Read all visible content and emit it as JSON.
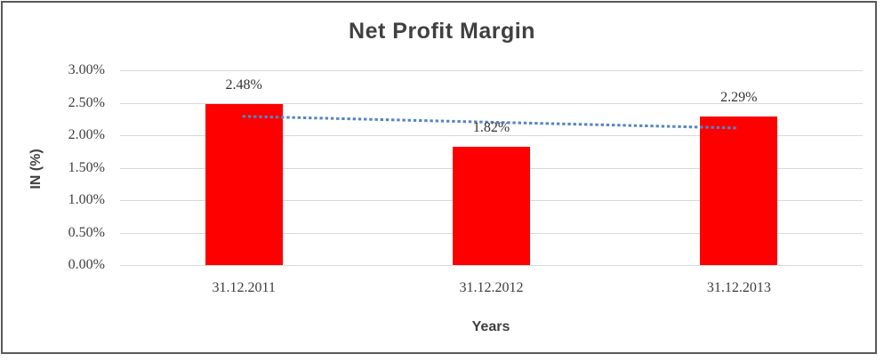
{
  "chart_data": {
    "type": "bar",
    "title": "Net Profit Margin",
    "xlabel": "Years",
    "ylabel": "IN (%)",
    "categories": [
      "31.12.2011",
      "31.12.2012",
      "31.12.2013"
    ],
    "values": [
      2.48,
      1.82,
      2.29
    ],
    "data_labels": [
      "2.48%",
      "1.82%",
      "2.29%"
    ],
    "y_ticks": [
      {
        "value": 0.0,
        "label": "0.00%"
      },
      {
        "value": 0.5,
        "label": "0.50%"
      },
      {
        "value": 1.0,
        "label": "1.00%"
      },
      {
        "value": 1.5,
        "label": "1.50%"
      },
      {
        "value": 2.0,
        "label": "2.00%"
      },
      {
        "value": 2.5,
        "label": "2.50%"
      },
      {
        "value": 3.0,
        "label": "3.00%"
      }
    ],
    "ylim": [
      0,
      3
    ],
    "grid": true,
    "legend": "none",
    "bar_color": "#ff0000",
    "gridline_color": "#d9d9d9",
    "text_color": "#404040",
    "trendline": {
      "style": "dotted",
      "color": "#5585c4",
      "start_value": 2.29,
      "end_value": 2.11
    }
  }
}
